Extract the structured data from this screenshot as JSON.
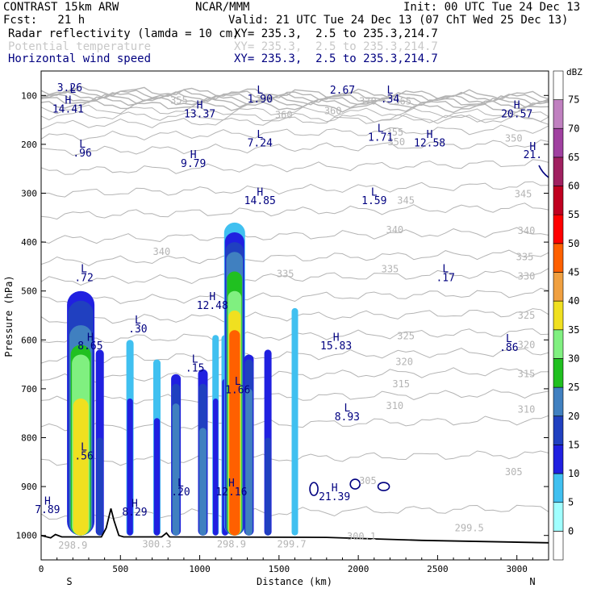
{
  "header": {
    "model": "CONTRAST 15km ARW",
    "org": "NCAR/MMM",
    "init": "Init: 00 UTC Tue 24 Dec 13",
    "fcst": "Fcst:   21 h",
    "valid": "Valid: 21 UTC Tue 24 Dec 13 (07 ChT Wed 25 Dec 13)",
    "fields": [
      {
        "name": "Radar reflectivity (lamda = 10 cm)",
        "xy": "XY= 235.3,  2.5 to 235.3,214.7",
        "color": "#000000"
      },
      {
        "name": "Potential temperature",
        "xy": "XY= 235.3,  2.5 to 235.3,214.7",
        "color": "#c8c8c8"
      },
      {
        "name": "Horizontal wind speed",
        "xy": "XY= 235.3,  2.5 to 235.3,214.7",
        "color": "#000080"
      }
    ]
  },
  "chart_data": {
    "type": "heatmap",
    "xlabel": "Distance (km)",
    "ylabel": "Pressure (hPa)",
    "xlim": [
      0,
      3200
    ],
    "ylim": [
      1050,
      50
    ],
    "x_ticks": [
      0,
      500,
      1000,
      1500,
      2000,
      2500,
      3000
    ],
    "y_ticks": [
      100,
      200,
      300,
      400,
      500,
      600,
      700,
      800,
      900,
      1000
    ],
    "side_labels": {
      "left": "S",
      "right": "N"
    },
    "colorbar": {
      "unit": "dBZ",
      "levels": [
        0,
        5,
        10,
        15,
        20,
        25,
        30,
        35,
        40,
        45,
        50,
        55,
        60,
        65,
        70,
        75
      ],
      "colors": [
        "#ffffff",
        "#a0ffff",
        "#40c0f0",
        "#2020e0",
        "#2040c0",
        "#4080c0",
        "#20c020",
        "#80f080",
        "#f0e020",
        "#f0a040",
        "#ff6000",
        "#ff0000",
        "#c00020",
        "#a02060",
        "#a040a0",
        "#c080c0",
        "#ffffff"
      ]
    },
    "theta_labels": [
      {
        "x": 870,
        "p": 110,
        "v": "355"
      },
      {
        "x": 1410,
        "p": 108,
        "v": "370"
      },
      {
        "x": 1530,
        "p": 140,
        "v": "360"
      },
      {
        "x": 1840,
        "p": 132,
        "v": "360"
      },
      {
        "x": 2060,
        "p": 112,
        "v": "370"
      },
      {
        "x": 2280,
        "p": 112,
        "v": "365"
      },
      {
        "x": 2230,
        "p": 175,
        "v": "355"
      },
      {
        "x": 2240,
        "p": 195,
        "v": "350"
      },
      {
        "x": 2980,
        "p": 188,
        "v": "350"
      },
      {
        "x": 3040,
        "p": 302,
        "v": "345"
      },
      {
        "x": 2300,
        "p": 315,
        "v": "345"
      },
      {
        "x": 2230,
        "p": 375,
        "v": "340"
      },
      {
        "x": 3060,
        "p": 377,
        "v": "340"
      },
      {
        "x": 3050,
        "p": 430,
        "v": "335"
      },
      {
        "x": 3060,
        "p": 470,
        "v": "330"
      },
      {
        "x": 3060,
        "p": 550,
        "v": "325"
      },
      {
        "x": 3060,
        "p": 610,
        "v": "320"
      },
      {
        "x": 3060,
        "p": 670,
        "v": "315"
      },
      {
        "x": 3060,
        "p": 742,
        "v": "310"
      },
      {
        "x": 760,
        "p": 420,
        "v": "340"
      },
      {
        "x": 1540,
        "p": 465,
        "v": "335"
      },
      {
        "x": 2200,
        "p": 455,
        "v": "335"
      },
      {
        "x": 2300,
        "p": 592,
        "v": "325"
      },
      {
        "x": 2290,
        "p": 645,
        "v": "320"
      },
      {
        "x": 2270,
        "p": 690,
        "v": "315"
      },
      {
        "x": 2230,
        "p": 735,
        "v": "310"
      },
      {
        "x": 2060,
        "p": 888,
        "v": "305"
      },
      {
        "x": 2980,
        "p": 870,
        "v": "305"
      },
      {
        "x": 200,
        "p": 1020,
        "v": "298.9"
      },
      {
        "x": 730,
        "p": 1018,
        "v": "300.3"
      },
      {
        "x": 1200,
        "p": 1018,
        "v": "298.9"
      },
      {
        "x": 1580,
        "p": 1018,
        "v": "299.7"
      },
      {
        "x": 2020,
        "p": 1002,
        "v": "300.1"
      },
      {
        "x": 2700,
        "p": 985,
        "v": "299.5"
      }
    ],
    "wind_extrema": [
      {
        "x": 180,
        "p": 85,
        "v": "3.26"
      },
      {
        "x": 200,
        "p": 88,
        "v": "L"
      },
      {
        "x": 170,
        "p": 110,
        "v": "H",
        "dx": -80
      },
      {
        "x": 170,
        "p": 128,
        "v": "14.41",
        "dx": -80
      },
      {
        "x": 1380,
        "p": 90,
        "v": "L"
      },
      {
        "x": 1380,
        "p": 108,
        "v": "1.90"
      },
      {
        "x": 1900,
        "p": 90,
        "v": "2.67"
      },
      {
        "x": 2200,
        "p": 90,
        "v": "L"
      },
      {
        "x": 2200,
        "p": 108,
        "v": ".34"
      },
      {
        "x": 1000,
        "p": 120,
        "v": "H"
      },
      {
        "x": 1000,
        "p": 138,
        "v": "13.37"
      },
      {
        "x": 3000,
        "p": 120,
        "v": "H"
      },
      {
        "x": 3000,
        "p": 138,
        "v": "20.57"
      },
      {
        "x": 1380,
        "p": 180,
        "v": "L"
      },
      {
        "x": 1380,
        "p": 198,
        "v": "7.24"
      },
      {
        "x": 2140,
        "p": 168,
        "v": "L"
      },
      {
        "x": 2140,
        "p": 186,
        "v": "1.71"
      },
      {
        "x": 2450,
        "p": 180,
        "v": "H"
      },
      {
        "x": 2450,
        "p": 198,
        "v": "12.58"
      },
      {
        "x": 3100,
        "p": 205,
        "v": "H"
      },
      {
        "x": 3100,
        "p": 222,
        "v": "21."
      },
      {
        "x": 260,
        "p": 200,
        "v": "L"
      },
      {
        "x": 260,
        "p": 218,
        "v": ".96"
      },
      {
        "x": 960,
        "p": 222,
        "v": "H"
      },
      {
        "x": 960,
        "p": 240,
        "v": "9.79"
      },
      {
        "x": 1380,
        "p": 298,
        "v": "H"
      },
      {
        "x": 1380,
        "p": 316,
        "v": "14.85"
      },
      {
        "x": 2100,
        "p": 298,
        "v": "L"
      },
      {
        "x": 2100,
        "p": 316,
        "v": "1.59"
      },
      {
        "x": 270,
        "p": 455,
        "v": "L"
      },
      {
        "x": 270,
        "p": 473,
        "v": ".72"
      },
      {
        "x": 2550,
        "p": 455,
        "v": "L"
      },
      {
        "x": 2550,
        "p": 473,
        "v": ".17"
      },
      {
        "x": 1080,
        "p": 512,
        "v": "H"
      },
      {
        "x": 1080,
        "p": 530,
        "v": "12.48"
      },
      {
        "x": 610,
        "p": 560,
        "v": "L"
      },
      {
        "x": 610,
        "p": 578,
        "v": ".30"
      },
      {
        "x": 310,
        "p": 595,
        "v": "H"
      },
      {
        "x": 310,
        "p": 613,
        "v": "8.65"
      },
      {
        "x": 1860,
        "p": 595,
        "v": "H"
      },
      {
        "x": 1860,
        "p": 613,
        "v": "15.83"
      },
      {
        "x": 2950,
        "p": 598,
        "v": "L"
      },
      {
        "x": 2950,
        "p": 616,
        "v": ".86"
      },
      {
        "x": 970,
        "p": 640,
        "v": "L"
      },
      {
        "x": 970,
        "p": 658,
        "v": ".15"
      },
      {
        "x": 1240,
        "p": 685,
        "v": "L"
      },
      {
        "x": 1240,
        "p": 703,
        "v": "1.66"
      },
      {
        "x": 1930,
        "p": 740,
        "v": "L"
      },
      {
        "x": 1930,
        "p": 758,
        "v": "8.93"
      },
      {
        "x": 270,
        "p": 820,
        "v": "L"
      },
      {
        "x": 270,
        "p": 838,
        "v": ".56"
      },
      {
        "x": 880,
        "p": 893,
        "v": "L"
      },
      {
        "x": 880,
        "p": 911,
        "v": ".20"
      },
      {
        "x": 1200,
        "p": 893,
        "v": "H"
      },
      {
        "x": 1200,
        "p": 911,
        "v": "12.16"
      },
      {
        "x": 40,
        "p": 930,
        "v": "H"
      },
      {
        "x": 40,
        "p": 948,
        "v": "7.89"
      },
      {
        "x": 590,
        "p": 935,
        "v": "H"
      },
      {
        "x": 590,
        "p": 953,
        "v": "8.29"
      },
      {
        "x": 1850,
        "p": 903,
        "v": "H"
      },
      {
        "x": 1850,
        "p": 921,
        "v": "21.39"
      }
    ],
    "convective_towers": [
      {
        "x": 250,
        "w": 34,
        "top": 500,
        "levels": [
          {
            "dbz": 10,
            "top": 500
          },
          {
            "dbz": 15,
            "top": 520
          },
          {
            "dbz": 20,
            "top": 570
          },
          {
            "dbz": 25,
            "top": 610
          },
          {
            "dbz": 30,
            "top": 630
          },
          {
            "dbz": 35,
            "top": 720
          }
        ]
      },
      {
        "x": 370,
        "w": 10,
        "top": 620,
        "levels": [
          {
            "dbz": 10,
            "top": 620
          },
          {
            "dbz": 15,
            "top": 800
          }
        ]
      },
      {
        "x": 560,
        "w": 9,
        "top": 600,
        "levels": [
          {
            "dbz": 5,
            "top": 600
          },
          {
            "dbz": 10,
            "top": 720
          }
        ]
      },
      {
        "x": 730,
        "w": 9,
        "top": 640,
        "levels": [
          {
            "dbz": 5,
            "top": 640
          },
          {
            "dbz": 10,
            "top": 760
          }
        ]
      },
      {
        "x": 850,
        "w": 12,
        "top": 670,
        "levels": [
          {
            "dbz": 10,
            "top": 670
          },
          {
            "dbz": 15,
            "top": 690
          },
          {
            "dbz": 20,
            "top": 730
          }
        ]
      },
      {
        "x": 1020,
        "w": 12,
        "top": 660,
        "levels": [
          {
            "dbz": 10,
            "top": 660
          },
          {
            "dbz": 15,
            "top": 690
          },
          {
            "dbz": 20,
            "top": 780
          }
        ]
      },
      {
        "x": 1100,
        "w": 8,
        "top": 590,
        "levels": [
          {
            "dbz": 5,
            "top": 590
          },
          {
            "dbz": 10,
            "top": 720
          }
        ]
      },
      {
        "x": 1160,
        "w": 9,
        "top": 590,
        "levels": [
          {
            "dbz": 5,
            "top": 590
          },
          {
            "dbz": 10,
            "top": 680
          }
        ]
      },
      {
        "x": 1220,
        "w": 26,
        "top": 360,
        "levels": [
          {
            "dbz": 5,
            "top": 360
          },
          {
            "dbz": 10,
            "top": 380
          },
          {
            "dbz": 15,
            "top": 400
          },
          {
            "dbz": 20,
            "top": 420
          },
          {
            "dbz": 25,
            "top": 460
          },
          {
            "dbz": 30,
            "top": 500
          },
          {
            "dbz": 35,
            "top": 540
          },
          {
            "dbz": 45,
            "top": 580
          }
        ]
      },
      {
        "x": 1310,
        "w": 12,
        "top": 630,
        "levels": [
          {
            "dbz": 10,
            "top": 630
          },
          {
            "dbz": 15,
            "top": 640
          },
          {
            "dbz": 20,
            "top": 700
          }
        ]
      },
      {
        "x": 1430,
        "w": 9,
        "top": 620,
        "levels": [
          {
            "dbz": 10,
            "top": 620
          },
          {
            "dbz": 15,
            "top": 800
          }
        ]
      },
      {
        "x": 1600,
        "w": 8,
        "top": 535,
        "levels": [
          {
            "dbz": 5,
            "top": 535
          }
        ]
      }
    ]
  }
}
